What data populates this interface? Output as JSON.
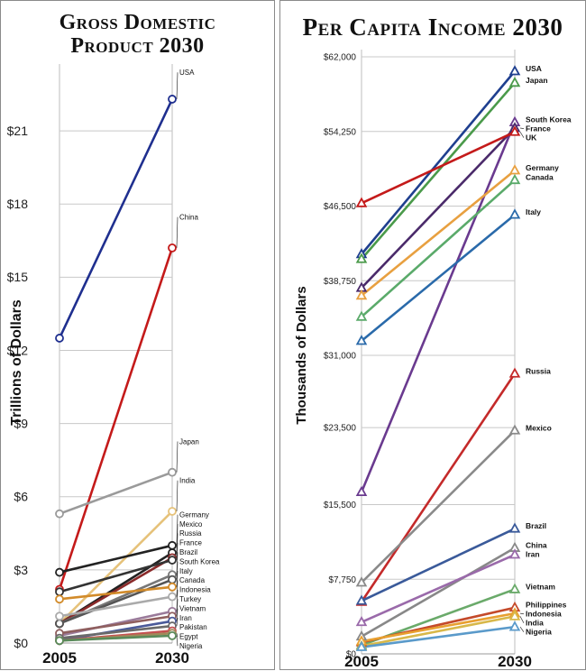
{
  "chart_data": [
    {
      "type": "line",
      "title_line1": "Gross Domestic",
      "title_line2": "Product 2030",
      "ylabel": "Trillions of Dollars",
      "x": [
        "2005",
        "2030"
      ],
      "ylim": [
        0,
        23
      ],
      "yticks": [
        {
          "value": 0,
          "label": "$0"
        },
        {
          "value": 3,
          "label": "$3"
        },
        {
          "value": 6,
          "label": "$6"
        },
        {
          "value": 9,
          "label": "$9"
        },
        {
          "value": 12,
          "label": "$12"
        },
        {
          "value": 15,
          "label": "$15"
        },
        {
          "value": 18,
          "label": "$18"
        },
        {
          "value": 21,
          "label": "$21"
        }
      ],
      "grid": true,
      "marker": "circle",
      "series": [
        {
          "name": "USA",
          "values": [
            12.5,
            22.3
          ],
          "color": "#1f2f8f"
        },
        {
          "name": "China",
          "values": [
            2.2,
            16.2
          ],
          "color": "#c41a1a"
        },
        {
          "name": "Japan",
          "values": [
            5.3,
            7.0
          ],
          "color": "#9a9a9a"
        },
        {
          "name": "India",
          "values": [
            0.8,
            5.4
          ],
          "color": "#e6c27a"
        },
        {
          "name": "Germany",
          "values": [
            2.9,
            4.0
          ],
          "color": "#222222"
        },
        {
          "name": "Mexico",
          "values": [
            0.8,
            3.7
          ],
          "color": "#222222"
        },
        {
          "name": "Russia",
          "values": [
            0.8,
            3.5
          ],
          "color": "#8a2a2a"
        },
        {
          "name": "France",
          "values": [
            2.1,
            3.4
          ],
          "color": "#333333"
        },
        {
          "name": "Brazil",
          "values": [
            0.8,
            2.8
          ],
          "color": "#777777"
        },
        {
          "name": "South Korea",
          "values": [
            0.8,
            2.6
          ],
          "color": "#555555"
        },
        {
          "name": "Italy",
          "values": [
            1.8,
            2.3
          ],
          "color": "#d28b2a"
        },
        {
          "name": "Canada",
          "values": [
            1.1,
            1.9
          ],
          "color": "#aaaaaa"
        },
        {
          "name": "Indonesia",
          "values": [
            0.3,
            1.3
          ],
          "color": "#9a7a9a"
        },
        {
          "name": "Turkey",
          "values": [
            0.4,
            1.1
          ],
          "color": "#8f5f5f"
        },
        {
          "name": "Vietnam",
          "values": [
            0.1,
            0.9
          ],
          "color": "#4a5a9a"
        },
        {
          "name": "Iran",
          "values": [
            0.2,
            0.7
          ],
          "color": "#6a6a6a"
        },
        {
          "name": "Pakistan",
          "values": [
            0.1,
            0.5
          ],
          "color": "#c45050"
        },
        {
          "name": "Egypt",
          "values": [
            0.1,
            0.4
          ],
          "color": "#a08a5a"
        },
        {
          "name": "Nigeria",
          "values": [
            0.1,
            0.3
          ],
          "color": "#5a8a5a"
        }
      ]
    },
    {
      "type": "line",
      "title": "Per Capita Income 2030",
      "ylabel": "Thousands of Dollars",
      "x": [
        "2005",
        "2030"
      ],
      "ylim": [
        0,
        62000
      ],
      "yticks": [
        {
          "value": 0,
          "label": "$0"
        },
        {
          "value": 7750,
          "label": "$7,750"
        },
        {
          "value": 15500,
          "label": "$15,500"
        },
        {
          "value": 23500,
          "label": "$23,500"
        },
        {
          "value": 31000,
          "label": "$31,000"
        },
        {
          "value": 38750,
          "label": "$38,750"
        },
        {
          "value": 46500,
          "label": "$46,500"
        },
        {
          "value": 54250,
          "label": "$54,250"
        },
        {
          "value": 62000,
          "label": "$62,000"
        }
      ],
      "grid": true,
      "marker": "triangle",
      "series": [
        {
          "name": "USA",
          "values": [
            41500,
            60500
          ],
          "color": "#1f3f8f"
        },
        {
          "name": "Japan",
          "values": [
            41000,
            59300
          ],
          "color": "#4a9a4a"
        },
        {
          "name": "South Korea",
          "values": [
            16800,
            55200
          ],
          "color": "#6a3a8f"
        },
        {
          "name": "France",
          "values": [
            38000,
            54600
          ],
          "color": "#4a2a6a"
        },
        {
          "name": "UK",
          "values": [
            46800,
            54200
          ],
          "color": "#c41a1a"
        },
        {
          "name": "Germany",
          "values": [
            37200,
            50200
          ],
          "color": "#e8a040"
        },
        {
          "name": "Canada",
          "values": [
            35000,
            49200
          ],
          "color": "#5aaa6a"
        },
        {
          "name": "Italy",
          "values": [
            32500,
            45600
          ],
          "color": "#2a6aaa"
        },
        {
          "name": "Russia",
          "values": [
            5400,
            29100
          ],
          "color": "#c42a2a"
        },
        {
          "name": "Mexico",
          "values": [
            7400,
            23200
          ],
          "color": "#8a8a8a"
        },
        {
          "name": "Brazil",
          "values": [
            5500,
            13000
          ],
          "color": "#3a5a9a"
        },
        {
          "name": "China",
          "values": [
            1800,
            11000
          ],
          "color": "#888888"
        },
        {
          "name": "Iran",
          "values": [
            3300,
            10300
          ],
          "color": "#9a6aaa"
        },
        {
          "name": "Vietnam",
          "values": [
            900,
            6700
          ],
          "color": "#6aaa6a"
        },
        {
          "name": "Philippines",
          "values": [
            1200,
            4800
          ],
          "color": "#c44a2a"
        },
        {
          "name": "Indonesia",
          "values": [
            1300,
            4200
          ],
          "color": "#e8a030"
        },
        {
          "name": "India",
          "values": [
            800,
            3900
          ],
          "color": "#d8b84a"
        },
        {
          "name": "Nigeria",
          "values": [
            700,
            2800
          ],
          "color": "#5a9aca"
        }
      ]
    }
  ]
}
